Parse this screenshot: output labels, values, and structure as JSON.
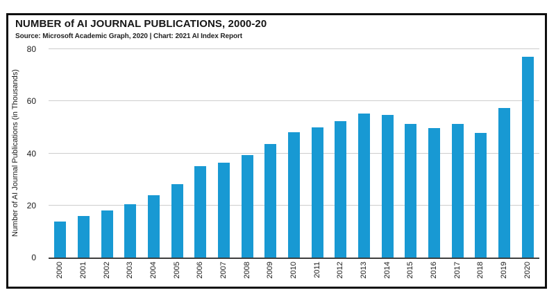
{
  "page": {
    "background": "#ffffff",
    "frame_border_color": "#0e0e0e"
  },
  "chart_data": {
    "type": "bar",
    "title": "NUMBER of AI JOURNAL PUBLICATIONS, 2000-20",
    "subtitle": "Source: Microsoft Academic Graph, 2020 | Chart: 2021 AI Index Report",
    "categories": [
      "2000",
      "2001",
      "2002",
      "2003",
      "2004",
      "2005",
      "2006",
      "2007",
      "2008",
      "2009",
      "2010",
      "2011",
      "2012",
      "2013",
      "2014",
      "2015",
      "2016",
      "2017",
      "2018",
      "2019",
      "2020"
    ],
    "values": [
      13.8,
      15.9,
      18.0,
      20.5,
      23.9,
      28.2,
      35.1,
      36.4,
      39.4,
      43.5,
      48.0,
      50.1,
      52.4,
      55.2,
      54.8,
      51.3,
      49.7,
      51.4,
      47.8,
      57.3,
      77.2
    ],
    "xlabel": "",
    "ylabel": "Number of AI Journal Publications (in Thousands)",
    "ylim": [
      0,
      80
    ],
    "yticks": [
      0,
      20,
      40,
      60,
      80
    ],
    "bar_color": "#1899d3",
    "gridline_color": "#cccccc",
    "grid": true,
    "legend": false
  }
}
